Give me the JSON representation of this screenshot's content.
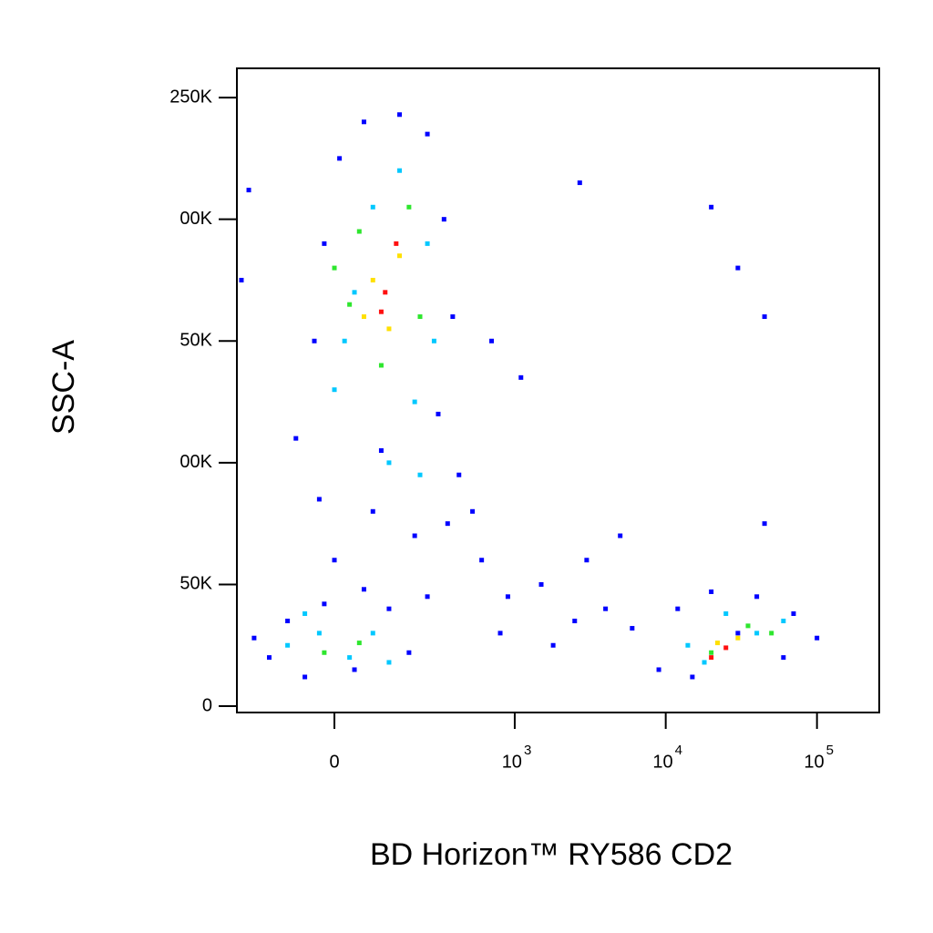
{
  "chart_data": {
    "type": "scatter",
    "x_label": "BD Horizon™ RY586 CD2",
    "y_label": "SSC-A",
    "xscale": "biexponential",
    "xlim": [
      -270,
      258000
    ],
    "xticks": [
      0,
      {
        "value": 1000,
        "label": "10",
        "exponent": "3"
      },
      {
        "value": 10000,
        "label": "10",
        "exponent": "4"
      },
      {
        "value": 100000,
        "label": "10",
        "exponent": "5"
      }
    ],
    "ylim": [
      -2600,
      262000
    ],
    "yticks": [
      0,
      {
        "value": 50000,
        "label": "50K"
      },
      {
        "value": 100000,
        "label": "00K"
      },
      {
        "value": 150000,
        "label": "50K"
      },
      {
        "value": 200000,
        "label": "00K"
      },
      {
        "value": 250000,
        "label": "250K"
      }
    ],
    "series": [
      {
        "color": "#0000ff",
        "x": [
          -150,
          -100,
          -60,
          -20,
          40,
          120,
          180,
          -200,
          60,
          250,
          -80,
          -40,
          -20,
          10,
          60,
          150,
          250,
          330,
          380,
          300,
          420,
          520,
          350,
          200,
          80,
          -30,
          100,
          0,
          600,
          900,
          1500,
          2500,
          4000,
          800,
          1800,
          6000,
          9000,
          12000,
          20000,
          40000,
          70000,
          100000,
          60000,
          15000,
          30000,
          3000,
          5000,
          45000,
          2700,
          20000,
          30000,
          45000,
          1100,
          700,
          -250,
          -220
        ],
        "values": [
          20000,
          35000,
          12000,
          42000,
          15000,
          40000,
          22000,
          28000,
          48000,
          45000,
          110000,
          150000,
          190000,
          225000,
          240000,
          243000,
          235000,
          200000,
          160000,
          120000,
          95000,
          80000,
          75000,
          70000,
          80000,
          85000,
          105000,
          60000,
          60000,
          45000,
          50000,
          35000,
          40000,
          30000,
          25000,
          32000,
          15000,
          40000,
          47000,
          45000,
          38000,
          28000,
          20000,
          12000,
          30000,
          60000,
          70000,
          75000,
          215000,
          205000,
          180000,
          160000,
          135000,
          150000,
          175000,
          212000
        ]
      },
      {
        "color": "#00c8ff",
        "x": [
          -100,
          -30,
          30,
          80,
          -60,
          120,
          0,
          40,
          80,
          150,
          250,
          280,
          200,
          20,
          120,
          220,
          14000,
          18000,
          40000,
          60000,
          25000
        ],
        "values": [
          25000,
          30000,
          20000,
          30000,
          38000,
          18000,
          130000,
          170000,
          205000,
          220000,
          190000,
          150000,
          125000,
          150000,
          100000,
          95000,
          25000,
          18000,
          30000,
          35000,
          38000
        ]
      },
      {
        "color": "#2ee62e",
        "x": [
          0,
          50,
          180,
          220,
          100,
          30,
          -20,
          50,
          20000,
          35000,
          50000
        ],
        "values": [
          180000,
          195000,
          205000,
          160000,
          140000,
          165000,
          22000,
          26000,
          22000,
          33000,
          30000
        ]
      },
      {
        "color": "#ffe000",
        "x": [
          80,
          150,
          120,
          60,
          22000,
          30000
        ],
        "values": [
          175000,
          185000,
          155000,
          160000,
          26000,
          28000
        ]
      },
      {
        "color": "#ff1010",
        "x": [
          110,
          140,
          100,
          25000,
          20000
        ],
        "values": [
          170000,
          190000,
          162000,
          24000,
          20000
        ]
      }
    ]
  }
}
